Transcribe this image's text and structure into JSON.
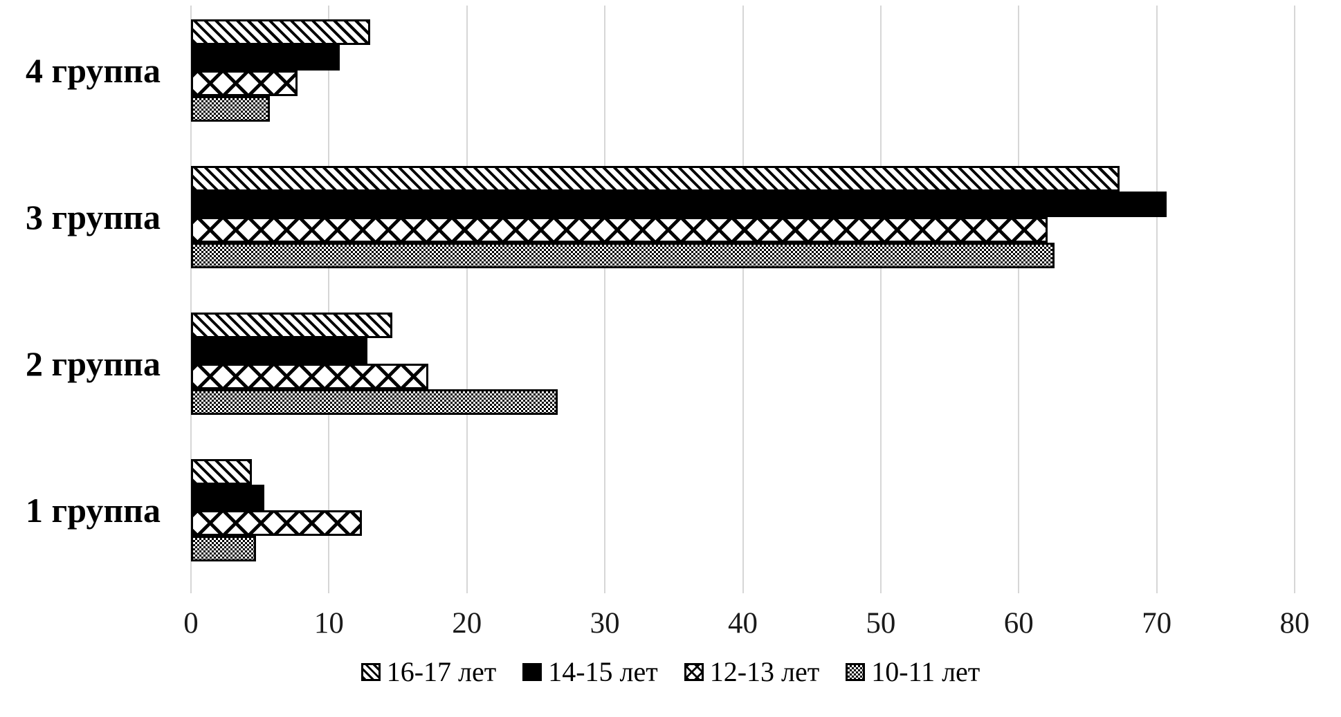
{
  "chart_data": {
    "type": "bar",
    "orientation": "horizontal",
    "title": "",
    "xlabel": "",
    "ylabel": "",
    "categories": [
      "4 группа",
      "3 группа",
      "2 группа",
      "1 группа"
    ],
    "series": [
      {
        "name": "16-17 лет",
        "pattern": "diagonal-hatch",
        "values": [
          13.0,
          67.3,
          14.6,
          4.4
        ]
      },
      {
        "name": "14-15 лет",
        "pattern": "solid-black",
        "values": [
          10.8,
          70.7,
          12.8,
          5.3
        ]
      },
      {
        "name": "12-13 лет",
        "pattern": "crosshatch",
        "values": [
          7.7,
          62.1,
          17.2,
          12.4
        ]
      },
      {
        "name": "10-11 лет",
        "pattern": "checker-gray",
        "values": [
          5.7,
          62.6,
          26.6,
          4.7
        ]
      }
    ],
    "xlim": [
      0,
      80
    ],
    "xticks": [
      0,
      10,
      20,
      30,
      40,
      50,
      60,
      70,
      80
    ],
    "grid": "vertical-major",
    "gridline_color": "#d6d6d6",
    "bar_border_color": "#000000",
    "legend_position": "bottom-center"
  }
}
